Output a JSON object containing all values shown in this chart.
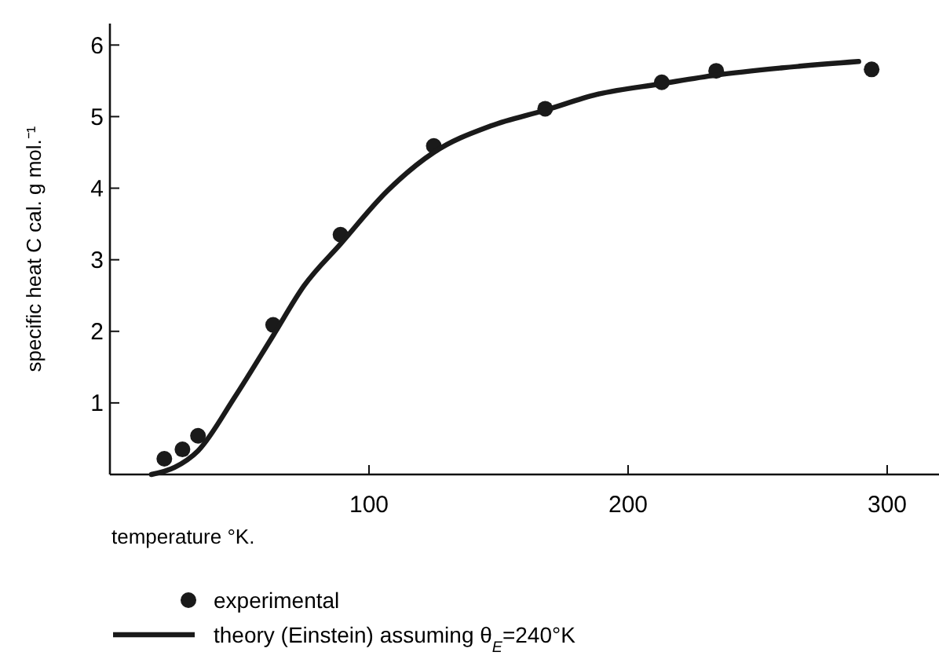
{
  "chart_data": {
    "type": "scatter",
    "xlabel": "temperature °K.",
    "ylabel": "specific heat C cal. g mol.⁻¹",
    "xlim": [
      0,
      320
    ],
    "ylim": [
      0,
      6.3
    ],
    "xticks": [
      100,
      200,
      300
    ],
    "yticks": [
      1,
      2,
      3,
      4,
      5,
      6
    ],
    "grid": false,
    "legend": "bottom left",
    "series": [
      {
        "name": "experimental",
        "color": "#1a1a1a",
        "marker": "circle",
        "x": [
          21,
          28,
          34,
          63,
          89,
          125,
          168,
          213,
          234,
          294
        ],
        "values": [
          0.22,
          0.35,
          0.54,
          2.09,
          3.35,
          4.59,
          5.11,
          5.48,
          5.64,
          5.66
        ]
      },
      {
        "name": "theory (Einstein) assuming θ$_{E}$=240°K",
        "type": "line",
        "color": "#1a1a1a",
        "marker": "none",
        "line_style": "solid",
        "x": [
          16,
          25,
          34,
          48,
          63,
          75,
          89,
          107,
          125,
          147,
          168,
          188,
          213,
          234,
          259,
          289
        ],
        "values": [
          0,
          0.1,
          0.33,
          1.07,
          1.94,
          2.64,
          3.22,
          3.96,
          4.5,
          4.87,
          5.09,
          5.31,
          5.46,
          5.58,
          5.68,
          5.77
        ]
      }
    ]
  }
}
